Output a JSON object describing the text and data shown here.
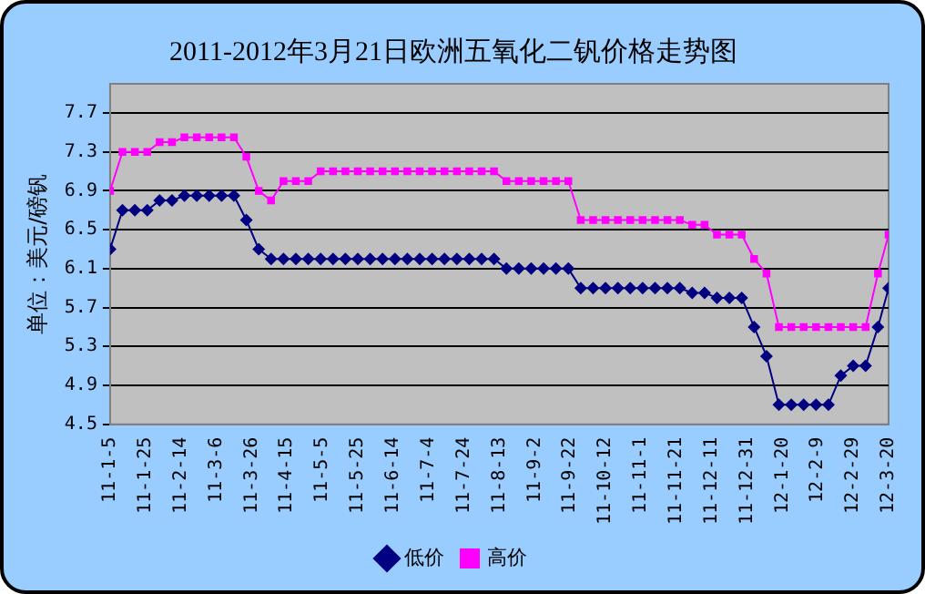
{
  "chart_data": {
    "type": "line",
    "title": "2011-2012年3月21日欧洲五氧化二钒价格走势图",
    "ylabel": "单位：美元/磅钒",
    "x": [
      "2011-01-05",
      "2011-01-12",
      "2011-01-19",
      "2011-01-26",
      "2011-02-02",
      "2011-02-09",
      "2011-02-16",
      "2011-02-23",
      "2011-03-02",
      "2011-03-09",
      "2011-03-16",
      "2011-03-23",
      "2011-03-30",
      "2011-04-06",
      "2011-04-13",
      "2011-04-20",
      "2011-04-27",
      "2011-05-04",
      "2011-05-11",
      "2011-05-18",
      "2011-05-25",
      "2011-06-01",
      "2011-06-08",
      "2011-06-15",
      "2011-06-22",
      "2011-06-29",
      "2011-07-06",
      "2011-07-13",
      "2011-07-20",
      "2011-07-27",
      "2011-08-03",
      "2011-08-10",
      "2011-08-17",
      "2011-08-24",
      "2011-08-31",
      "2011-09-07",
      "2011-09-14",
      "2011-09-21",
      "2011-09-28",
      "2011-10-05",
      "2011-10-12",
      "2011-10-19",
      "2011-10-26",
      "2011-11-02",
      "2011-11-09",
      "2011-11-16",
      "2011-11-23",
      "2011-11-30",
      "2011-12-07",
      "2011-12-14",
      "2011-12-21",
      "2011-12-28",
      "2012-01-04",
      "2012-01-11",
      "2012-01-18",
      "2012-01-25",
      "2012-02-01",
      "2012-02-08",
      "2012-02-15",
      "2012-02-22",
      "2012-02-29",
      "2012-03-07",
      "2012-03-14",
      "2012-03-20"
    ],
    "series": [
      {
        "name": "低价",
        "color": "#000080",
        "marker": "diamond",
        "values": [
          6.3,
          6.7,
          6.7,
          6.7,
          6.8,
          6.8,
          6.85,
          6.85,
          6.85,
          6.85,
          6.85,
          6.6,
          6.3,
          6.2,
          6.2,
          6.2,
          6.2,
          6.2,
          6.2,
          6.2,
          6.2,
          6.2,
          6.2,
          6.2,
          6.2,
          6.2,
          6.2,
          6.2,
          6.2,
          6.2,
          6.2,
          6.2,
          6.1,
          6.1,
          6.1,
          6.1,
          6.1,
          6.1,
          5.9,
          5.9,
          5.9,
          5.9,
          5.9,
          5.9,
          5.9,
          5.9,
          5.9,
          5.85,
          5.85,
          5.8,
          5.8,
          5.8,
          5.5,
          5.2,
          4.7,
          4.7,
          4.7,
          4.7,
          4.7,
          5.0,
          5.1,
          5.1,
          5.5,
          5.9
        ]
      },
      {
        "name": "高价",
        "color": "#ff00ff",
        "marker": "square",
        "values": [
          6.9,
          7.3,
          7.3,
          7.3,
          7.4,
          7.4,
          7.45,
          7.45,
          7.45,
          7.45,
          7.45,
          7.25,
          6.9,
          6.8,
          7.0,
          7.0,
          7.0,
          7.1,
          7.1,
          7.1,
          7.1,
          7.1,
          7.1,
          7.1,
          7.1,
          7.1,
          7.1,
          7.1,
          7.1,
          7.1,
          7.1,
          7.1,
          7.0,
          7.0,
          7.0,
          7.0,
          7.0,
          7.0,
          6.6,
          6.6,
          6.6,
          6.6,
          6.6,
          6.6,
          6.6,
          6.6,
          6.6,
          6.55,
          6.55,
          6.45,
          6.45,
          6.45,
          6.2,
          6.05,
          5.5,
          5.5,
          5.5,
          5.5,
          5.5,
          5.5,
          5.5,
          5.5,
          6.05,
          6.45
        ]
      }
    ],
    "xlim": [
      "2011-01-05",
      "2012-03-20"
    ],
    "xticks": [
      {
        "value": "2011-01-05",
        "label": "11-1-5"
      },
      {
        "value": "2011-01-25",
        "label": "11-1-25"
      },
      {
        "value": "2011-02-14",
        "label": "11-2-14"
      },
      {
        "value": "2011-03-06",
        "label": "11-3-6"
      },
      {
        "value": "2011-03-26",
        "label": "11-3-26"
      },
      {
        "value": "2011-04-15",
        "label": "11-4-15"
      },
      {
        "value": "2011-05-05",
        "label": "11-5-5"
      },
      {
        "value": "2011-05-25",
        "label": "11-5-25"
      },
      {
        "value": "2011-06-14",
        "label": "11-6-14"
      },
      {
        "value": "2011-07-04",
        "label": "11-7-4"
      },
      {
        "value": "2011-07-24",
        "label": "11-7-24"
      },
      {
        "value": "2011-08-13",
        "label": "11-8-13"
      },
      {
        "value": "2011-09-02",
        "label": "11-9-2"
      },
      {
        "value": "2011-09-22",
        "label": "11-9-22"
      },
      {
        "value": "2011-10-12",
        "label": "11-10-12"
      },
      {
        "value": "2011-11-01",
        "label": "11-11-1"
      },
      {
        "value": "2011-11-21",
        "label": "11-11-21"
      },
      {
        "value": "2011-12-11",
        "label": "11-12-11"
      },
      {
        "value": "2011-12-31",
        "label": "11-12-31"
      },
      {
        "value": "2012-01-20",
        "label": "12-1-20"
      },
      {
        "value": "2012-02-09",
        "label": "12-2-9"
      },
      {
        "value": "2012-02-29",
        "label": "12-2-29"
      },
      {
        "value": "2012-03-20",
        "label": "12-3-20"
      }
    ],
    "ylim": [
      4.5,
      8.0
    ],
    "yticks": [
      4.5,
      4.9,
      5.3,
      5.7,
      6.1,
      6.5,
      6.9,
      7.3,
      7.7
    ],
    "grid": "y",
    "legend": "bottom",
    "line_style": "solid"
  }
}
